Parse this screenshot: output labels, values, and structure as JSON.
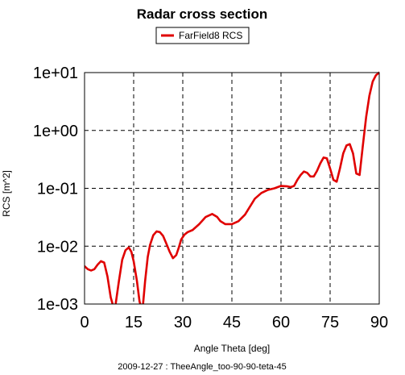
{
  "chart_data": {
    "type": "line",
    "title": "Radar cross section",
    "xlabel": "Angle Theta [deg]",
    "ylabel": "RCS [m^2]",
    "footer": "2009-12-27 : TheeAngle_too-90-90-teta-45",
    "xlim": [
      0,
      90
    ],
    "ylim": [
      0.001,
      10
    ],
    "yscale": "log",
    "grid": true,
    "legend_position": "top-center",
    "x_ticks": [
      "0",
      "15",
      "30",
      "45",
      "60",
      "75",
      "90"
    ],
    "y_ticks": [
      "1e-03",
      "1e-02",
      "1e-01",
      "1e+00",
      "1e+01"
    ],
    "series": [
      {
        "name": "FarField8 RCS",
        "color": "#e00000",
        "x": [
          0,
          1,
          2,
          3,
          4,
          5,
          6,
          7,
          8,
          8.8,
          9.5,
          10.5,
          11.5,
          12.5,
          13.5,
          14.3,
          15,
          16,
          16.8,
          17.3,
          17.8,
          18.5,
          19.3,
          20,
          21,
          22,
          23,
          24,
          25,
          26,
          27,
          28,
          28.8,
          29.5,
          30.5,
          31.5,
          33,
          35,
          37,
          39,
          40.5,
          41.5,
          43,
          45,
          47,
          49,
          50.5,
          52,
          54,
          56,
          58,
          60,
          62,
          63,
          64,
          65,
          66,
          67,
          68,
          69,
          70,
          71,
          72,
          73,
          74,
          75,
          76,
          77,
          78,
          79,
          80,
          81,
          82,
          83,
          84,
          85,
          86,
          87,
          88,
          89,
          90
        ],
        "values": [
          0.0045,
          0.004,
          0.0038,
          0.004,
          0.0048,
          0.0055,
          0.0052,
          0.003,
          0.0013,
          0.0009,
          0.001,
          0.0025,
          0.0058,
          0.0085,
          0.0095,
          0.008,
          0.0055,
          0.0025,
          0.0011,
          0.0009,
          0.0009,
          0.0025,
          0.0065,
          0.0105,
          0.0155,
          0.018,
          0.0175,
          0.015,
          0.011,
          0.008,
          0.0062,
          0.007,
          0.0095,
          0.013,
          0.0158,
          0.0175,
          0.019,
          0.024,
          0.032,
          0.036,
          0.032,
          0.027,
          0.024,
          0.024,
          0.027,
          0.035,
          0.048,
          0.066,
          0.083,
          0.094,
          0.1,
          0.11,
          0.108,
          0.105,
          0.11,
          0.14,
          0.17,
          0.195,
          0.185,
          0.16,
          0.16,
          0.2,
          0.27,
          0.34,
          0.33,
          0.22,
          0.14,
          0.13,
          0.22,
          0.4,
          0.55,
          0.58,
          0.4,
          0.18,
          0.17,
          0.55,
          1.7,
          4.0,
          7.0,
          9.0,
          10.0
        ]
      }
    ]
  }
}
